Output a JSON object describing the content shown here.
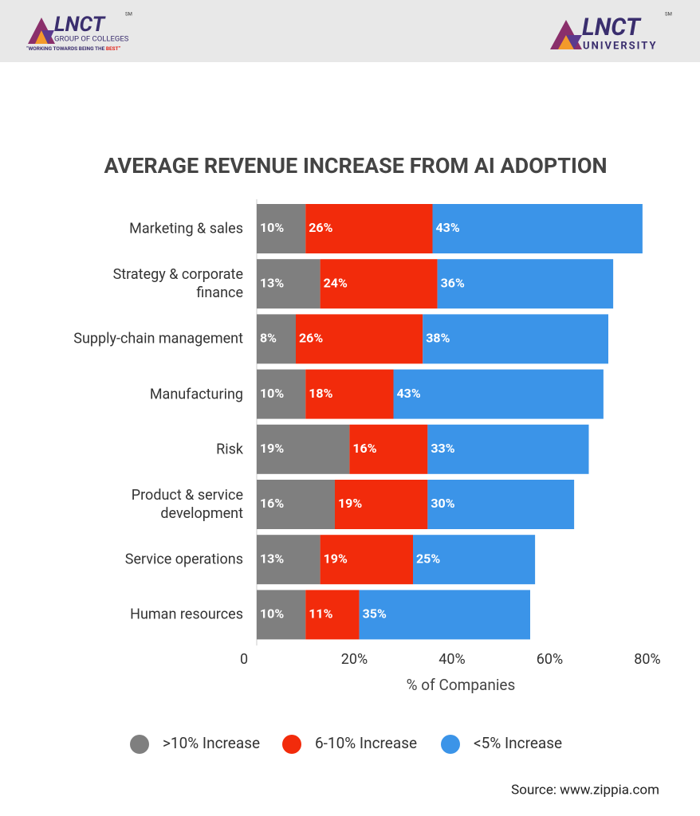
{
  "header": {
    "left_logo": {
      "brand": "LNCT",
      "mark": "SM",
      "subtitle": "GROUP OF COLLEGES",
      "slogan": "“WORKING TOWARDS BEING THE ",
      "slogan_highlight": "BEST”"
    },
    "right_logo": {
      "brand": "LNCT",
      "mark": "SM",
      "subtitle": "UNIVERSITY"
    }
  },
  "chart_data": {
    "type": "stacked-bar",
    "orientation": "horizontal",
    "title": "AVERAGE REVENUE INCREASE FROM AI ADOPTION",
    "categories": [
      "Marketing & sales",
      "Strategy & corporate\nfinance",
      "Supply-chain management",
      "Manufacturing",
      "Risk",
      "Product & service\ndevelopment",
      "Service operations",
      "Human resources"
    ],
    "series": [
      {
        "name": ">10% Increase",
        "color": "#7f7f7f",
        "values": [
          10,
          13,
          8,
          10,
          19,
          16,
          13,
          10
        ],
        "value_labels": [
          "10%",
          "13%",
          "8%",
          "10%",
          "19%",
          "16%",
          "13%",
          "10%"
        ]
      },
      {
        "name": "6-10% Increase",
        "color": "#f22b0b",
        "values": [
          26,
          24,
          26,
          18,
          16,
          19,
          19,
          11
        ],
        "value_labels": [
          "26%",
          "24%",
          "26%",
          "18%",
          "16%",
          "19%",
          "19%",
          "11%"
        ]
      },
      {
        "name": "<5% Increase",
        "color": "#3b94e8",
        "values": [
          43,
          36,
          38,
          43,
          33,
          30,
          25,
          35
        ],
        "value_labels": [
          "43%",
          "36%",
          "38%",
          "43%",
          "33%",
          "30%",
          "25%",
          "35%"
        ]
      }
    ],
    "xlabel": "% of Companies",
    "xlim": [
      0,
      80
    ],
    "xticks": [
      0,
      {
        "value": 20,
        "label": "20%"
      },
      {
        "value": 40,
        "label": "40%"
      },
      {
        "value": 60,
        "label": "60%"
      },
      {
        "value": 80,
        "label": "80%"
      }
    ],
    "legend": "bottom",
    "source": "Source: www.zippia.com"
  }
}
